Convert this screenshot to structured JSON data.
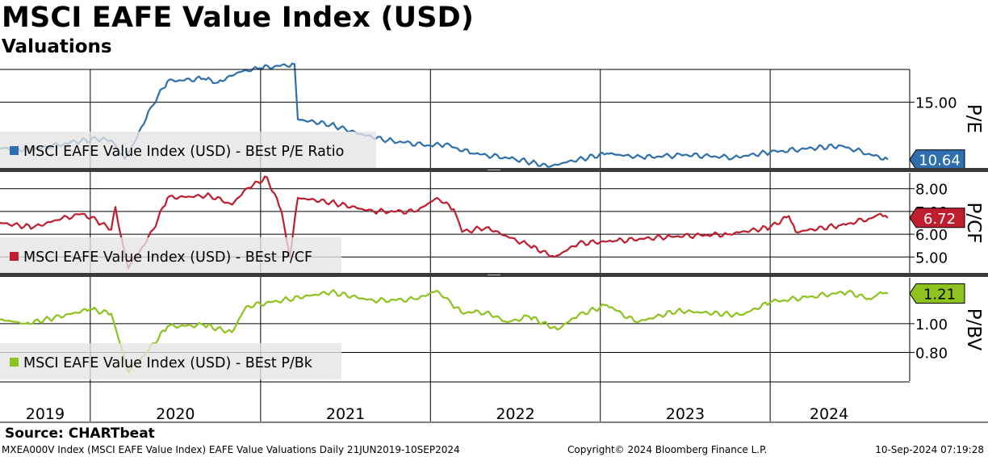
{
  "title": "MSCI EAFE Value Index (USD)",
  "subtitle": "Valuations",
  "source": "Source: CHARTbeat",
  "footer": {
    "left": "MXEA000V Index (MSCI EAFE Value Index) EAFE Value Valuations  Daily 21JUN2019-10SEP2024",
    "center": "Copyright© 2024 Bloomberg Finance L.P.",
    "right": "10-Sep-2024 07:19:28"
  },
  "chart_data": {
    "type": "line",
    "x_axis": {
      "start": "2019-06-21",
      "end": "2024-09-10",
      "year_labels": [
        "2019",
        "2020",
        "2021",
        "2022",
        "2023",
        "2024"
      ]
    },
    "panels": [
      {
        "axis_label": "P/E",
        "ylim": [
          10.0,
          17.5
        ],
        "ticks": [
          15.0
        ],
        "tick_labels": [
          "15.00"
        ],
        "last_value": "10.64",
        "color": "#2e6fad",
        "legend": "MSCI EAFE Value Index (USD) - BEst P/E Ratio",
        "points": [
          [
            "2019-06-21",
            11.5
          ],
          [
            "2019-09-01",
            11.4
          ],
          [
            "2019-12-01",
            12.0
          ],
          [
            "2020-01-15",
            12.2
          ],
          [
            "2020-02-15",
            12.1
          ],
          [
            "2020-03-15",
            10.7
          ],
          [
            "2020-04-10",
            12.3
          ],
          [
            "2020-05-10",
            14.6
          ],
          [
            "2020-06-15",
            16.6
          ],
          [
            "2020-09-01",
            16.8
          ],
          [
            "2020-10-01",
            16.5
          ],
          [
            "2020-11-15",
            17.3
          ],
          [
            "2020-12-31",
            17.6
          ],
          [
            "2021-03-15",
            17.9
          ],
          [
            "2021-03-22",
            13.7
          ],
          [
            "2021-06-01",
            13.3
          ],
          [
            "2021-08-01",
            12.6
          ],
          [
            "2021-10-01",
            12.1
          ],
          [
            "2021-12-31",
            11.7
          ],
          [
            "2022-02-01",
            11.8
          ],
          [
            "2022-04-01",
            11.1
          ],
          [
            "2022-07-01",
            10.7
          ],
          [
            "2022-09-15",
            10.1
          ],
          [
            "2022-10-15",
            10.4
          ],
          [
            "2023-01-15",
            11.1
          ],
          [
            "2023-04-01",
            10.8
          ],
          [
            "2023-07-01",
            11.0
          ],
          [
            "2023-10-15",
            10.8
          ],
          [
            "2024-01-01",
            11.2
          ],
          [
            "2024-04-01",
            11.5
          ],
          [
            "2024-06-01",
            11.7
          ],
          [
            "2024-08-05",
            11.0
          ],
          [
            "2024-09-10",
            10.64
          ]
        ]
      },
      {
        "axis_label": "P/CF",
        "ylim": [
          4.3,
          8.7
        ],
        "ticks": [
          5.0,
          6.0,
          7.0,
          8.0
        ],
        "tick_labels": [
          "5.00",
          "6.00",
          "7.00",
          "8.00"
        ],
        "last_value": "6.72",
        "color": "#bf1e2e",
        "legend": "MSCI EAFE Value Index (USD) - BEst P/CF",
        "points": [
          [
            "2019-06-21",
            6.5
          ],
          [
            "2019-09-01",
            6.3
          ],
          [
            "2019-11-01",
            6.7
          ],
          [
            "2019-12-15",
            6.9
          ],
          [
            "2020-01-15",
            6.6
          ],
          [
            "2020-02-15",
            6.2
          ],
          [
            "2020-02-24",
            7.2
          ],
          [
            "2020-03-05",
            6.1
          ],
          [
            "2020-03-23",
            4.5
          ],
          [
            "2020-04-15",
            5.2
          ],
          [
            "2020-05-15",
            6.2
          ],
          [
            "2020-06-15",
            7.6
          ],
          [
            "2020-09-15",
            7.7
          ],
          [
            "2020-11-01",
            7.3
          ],
          [
            "2020-12-01",
            8.0
          ],
          [
            "2021-01-15",
            8.5
          ],
          [
            "2021-02-15",
            7.0
          ],
          [
            "2021-03-05",
            5.0
          ],
          [
            "2021-03-22",
            7.6
          ],
          [
            "2021-06-01",
            7.4
          ],
          [
            "2021-09-01",
            7.0
          ],
          [
            "2021-12-01",
            7.0
          ],
          [
            "2022-01-15",
            7.6
          ],
          [
            "2022-02-20",
            7.1
          ],
          [
            "2022-03-10",
            6.1
          ],
          [
            "2022-05-01",
            6.3
          ],
          [
            "2022-06-15",
            5.9
          ],
          [
            "2022-08-01",
            5.5
          ],
          [
            "2022-09-25",
            5.0
          ],
          [
            "2022-11-15",
            5.6
          ],
          [
            "2023-02-01",
            5.7
          ],
          [
            "2023-06-01",
            5.9
          ],
          [
            "2023-10-01",
            6.0
          ],
          [
            "2024-01-01",
            6.3
          ],
          [
            "2024-02-10",
            6.8
          ],
          [
            "2024-02-25",
            6.1
          ],
          [
            "2024-06-01",
            6.4
          ],
          [
            "2024-08-05",
            6.7
          ],
          [
            "2024-08-25",
            6.9
          ],
          [
            "2024-09-10",
            6.72
          ]
        ]
      },
      {
        "axis_label": "P/BV",
        "ylim": [
          0.6,
          1.32
        ],
        "ticks": [
          0.8,
          1.0
        ],
        "tick_labels": [
          "0.80",
          "1.00"
        ],
        "last_value": "1.21",
        "color": "#8dc21f",
        "legend": "MSCI EAFE Value Index (USD) - BEst P/Bk",
        "points": [
          [
            "2019-06-21",
            1.03
          ],
          [
            "2019-08-15",
            1.0
          ],
          [
            "2019-10-15",
            1.04
          ],
          [
            "2019-12-31",
            1.1
          ],
          [
            "2020-02-15",
            1.07
          ],
          [
            "2020-03-23",
            0.66
          ],
          [
            "2020-05-01",
            0.8
          ],
          [
            "2020-06-15",
            0.98
          ],
          [
            "2020-09-01",
            0.99
          ],
          [
            "2020-10-31",
            0.94
          ],
          [
            "2020-12-01",
            1.12
          ],
          [
            "2021-03-01",
            1.17
          ],
          [
            "2021-06-01",
            1.22
          ],
          [
            "2021-09-01",
            1.16
          ],
          [
            "2021-12-01",
            1.17
          ],
          [
            "2022-01-15",
            1.23
          ],
          [
            "2022-02-15",
            1.14
          ],
          [
            "2022-03-08",
            1.08
          ],
          [
            "2022-05-01",
            1.08
          ],
          [
            "2022-06-15",
            1.01
          ],
          [
            "2022-08-01",
            1.05
          ],
          [
            "2022-09-30",
            0.96
          ],
          [
            "2022-11-15",
            1.06
          ],
          [
            "2023-01-15",
            1.13
          ],
          [
            "2023-03-20",
            1.01
          ],
          [
            "2023-06-15",
            1.09
          ],
          [
            "2023-10-31",
            1.06
          ],
          [
            "2024-01-01",
            1.15
          ],
          [
            "2024-04-01",
            1.19
          ],
          [
            "2024-06-15",
            1.22
          ],
          [
            "2024-08-05",
            1.17
          ],
          [
            "2024-08-25",
            1.22
          ],
          [
            "2024-09-10",
            1.21
          ]
        ]
      }
    ]
  }
}
